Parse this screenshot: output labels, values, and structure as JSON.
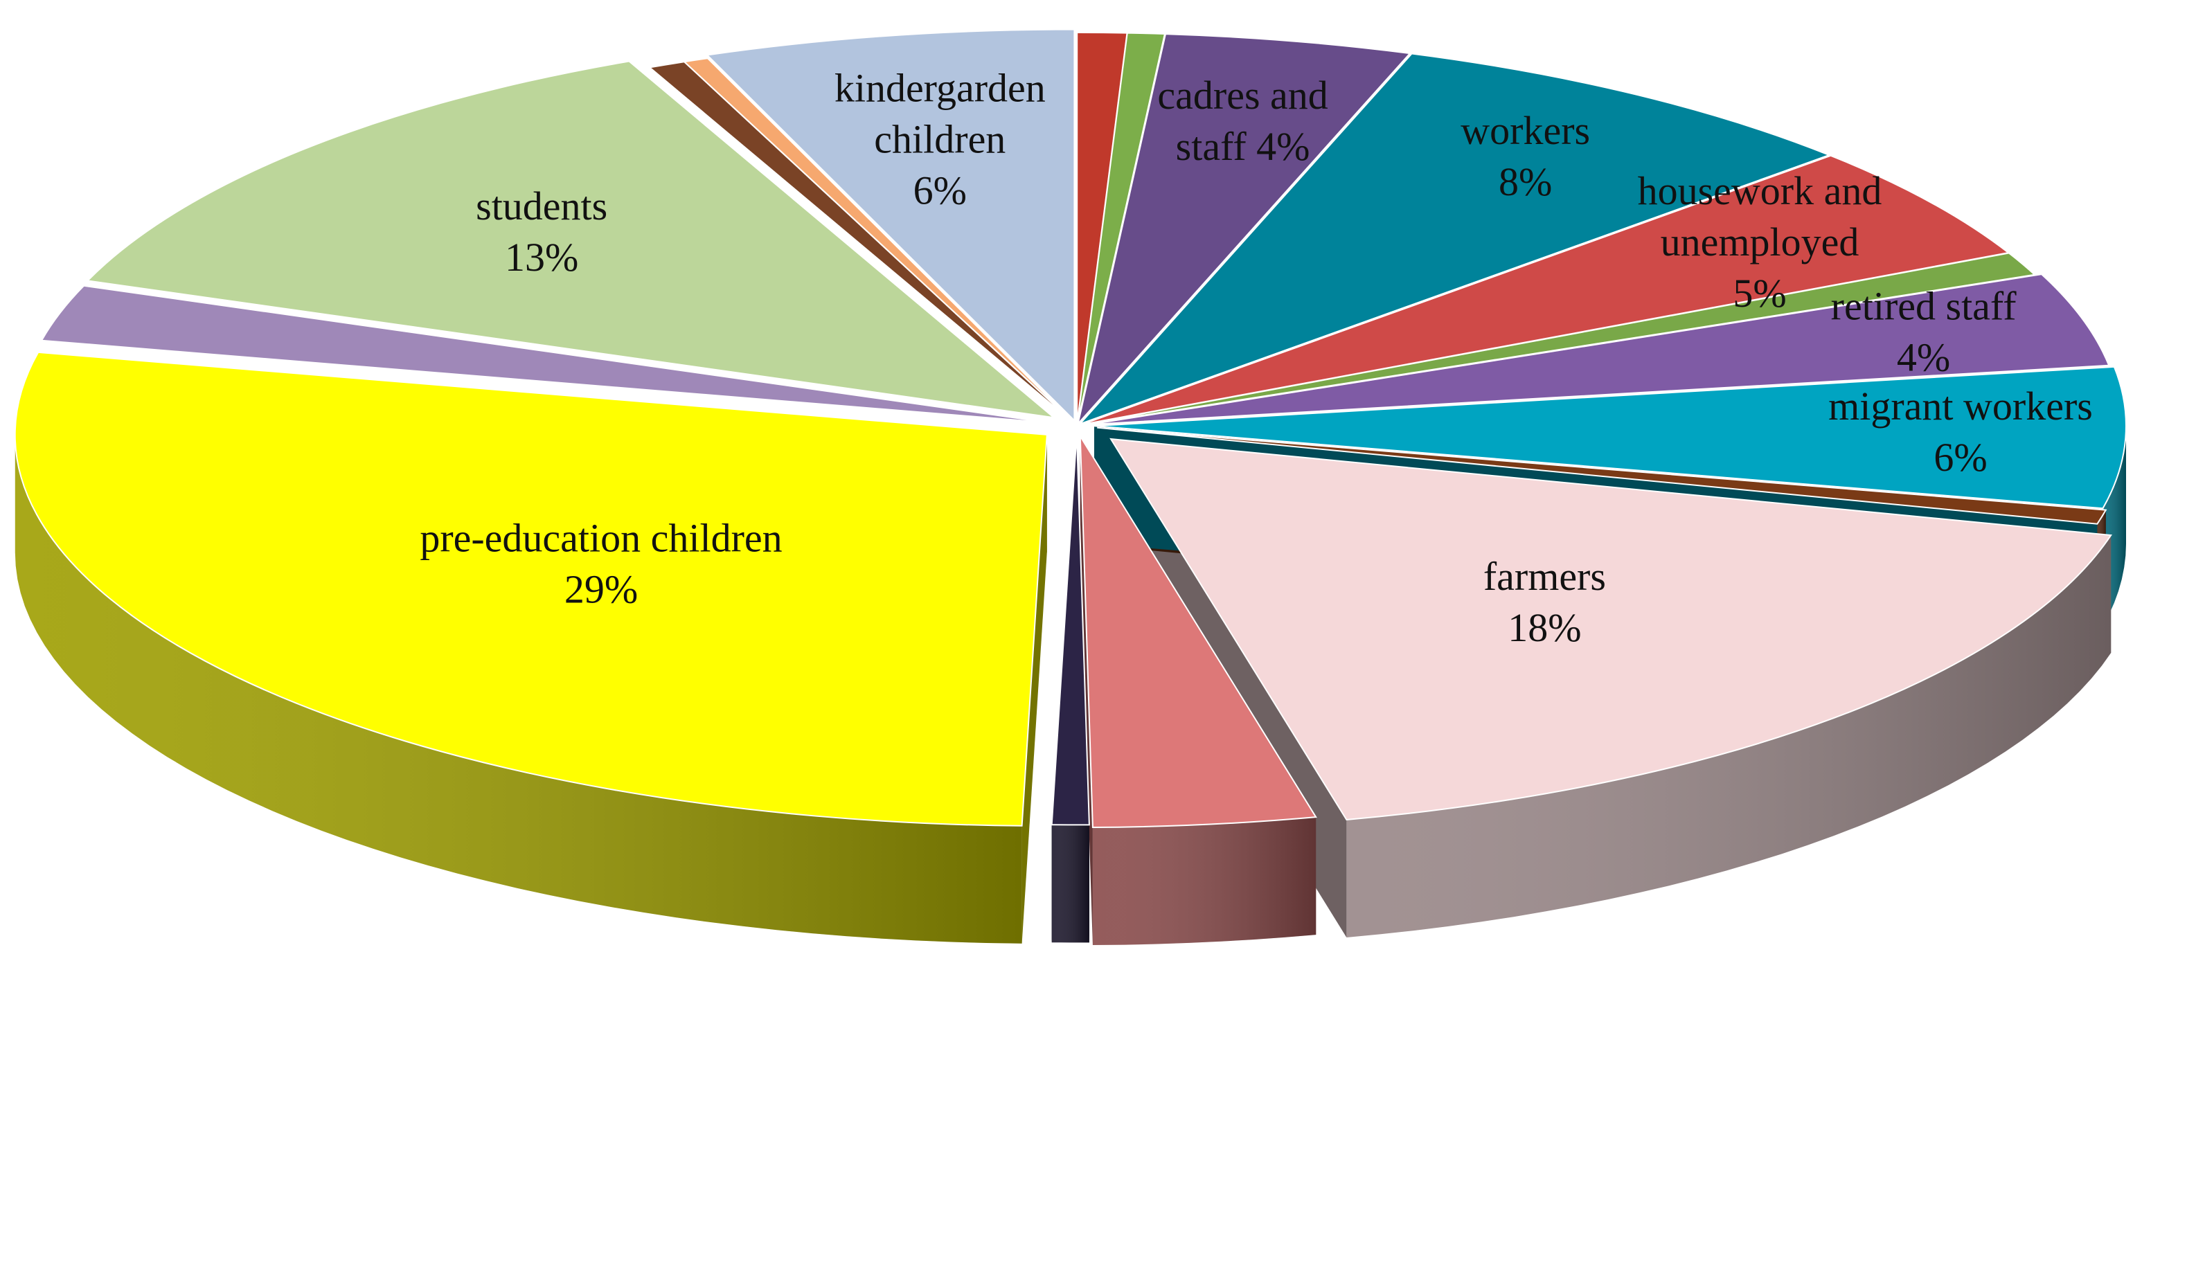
{
  "chart_data": {
    "type": "pie",
    "style": "3d-exploded",
    "slices": [
      {
        "id": "s-thin-red",
        "value": 0.8,
        "color": "#c0392b",
        "lines": []
      },
      {
        "id": "s-thin-green",
        "value": 0.6,
        "color": "#7cae4a",
        "lines": []
      },
      {
        "id": "s-cadres",
        "value": 4,
        "color": "#674c8a",
        "lines": [
          "cadres and",
          "staff  4%"
        ]
      },
      {
        "id": "s-workers",
        "value": 8,
        "color": "#00839a",
        "lines": [
          "workers",
          "8%"
        ]
      },
      {
        "id": "s-housework",
        "value": 5,
        "color": "#cf4a48",
        "lines": [
          "housework and",
          "unemployed",
          "5%"
        ]
      },
      {
        "id": "s-thin-green-2",
        "value": 1,
        "color": "#79a848",
        "lines": []
      },
      {
        "id": "s-retired",
        "value": 4,
        "color": "#7f5ba5",
        "lines": [
          "retired staff",
          "4%"
        ]
      },
      {
        "id": "s-migrant",
        "value": 6,
        "color": "#00a4c1",
        "lines": [
          "migrant workers",
          "6%"
        ]
      },
      {
        "id": "s-brown-sliver",
        "value": 0.6,
        "color": "#7a3a16",
        "lines": []
      },
      {
        "id": "s-farmers",
        "value": 18,
        "color": "#f5d8d9",
        "lines": [
          "farmers",
          "18%"
        ]
      },
      {
        "id": "s-dark-pink",
        "value": 3.6,
        "color": "#dd7878",
        "lines": []
      },
      {
        "id": "s-navy-sliver",
        "value": 0.6,
        "color": "#2c2446",
        "lines": []
      },
      {
        "id": "s-pre-education",
        "value": 29,
        "color": "#ffff00",
        "lines": [
          "pre-education children",
          "29%"
        ]
      },
      {
        "id": "s-lavender",
        "value": 2.4,
        "color": "#9f88b8",
        "lines": []
      },
      {
        "id": "s-students",
        "value": 13,
        "color": "#bcd69a",
        "lines": [
          "students",
          "13%"
        ]
      },
      {
        "id": "s-brown-sliver-2",
        "value": 0.6,
        "color": "#7a4326",
        "lines": []
      },
      {
        "id": "s-orange-sliver",
        "value": 0.4,
        "color": "#f6a86f",
        "lines": []
      },
      {
        "id": "s-kindergarden",
        "value": 6,
        "color": "#b2c4de",
        "lines": [
          "kindergarden",
          "children",
          "6%"
        ]
      }
    ]
  }
}
